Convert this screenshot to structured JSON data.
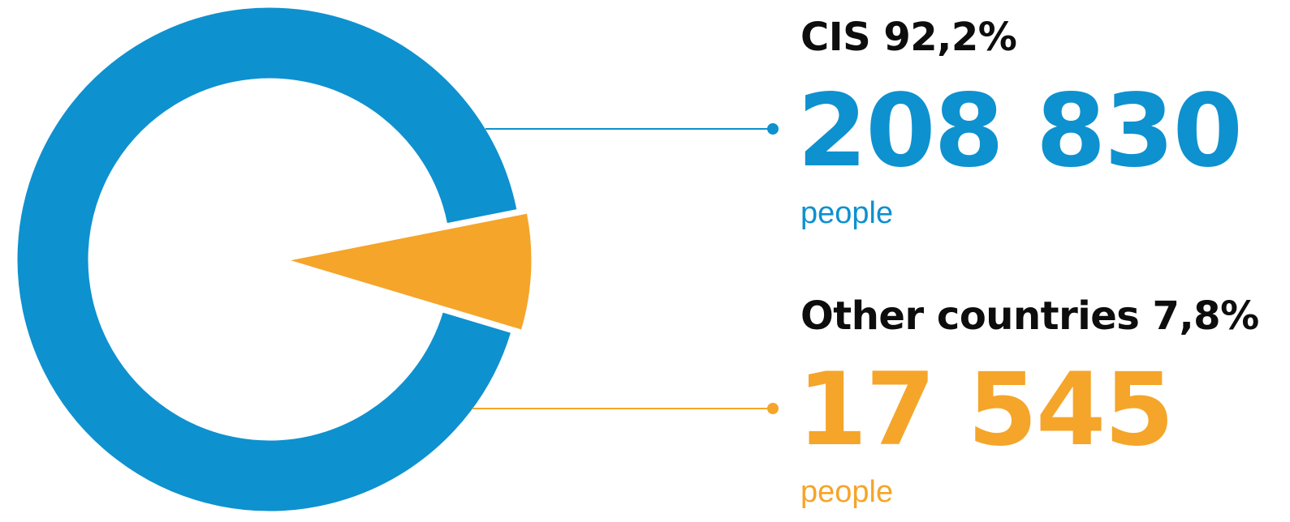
{
  "colors": {
    "cis": "#0e91cf",
    "other": "#f5a52a",
    "title": "#0d0d0d"
  },
  "chart_data": {
    "type": "pie",
    "style": "donut with exploded wedge",
    "unit": "people",
    "series": [
      {
        "name": "CIS",
        "percent_label": "92,2%",
        "title": "CIS 92,2%",
        "value_label": "208 830",
        "value": 208830,
        "share": 92.2,
        "color": "#0e91cf"
      },
      {
        "name": "Other countries",
        "percent_label": "7,8%",
        "title": "Other countries 7,8%",
        "value_label": "17 545",
        "value": 17545,
        "share": 7.8,
        "color": "#f5a52a"
      }
    ]
  }
}
